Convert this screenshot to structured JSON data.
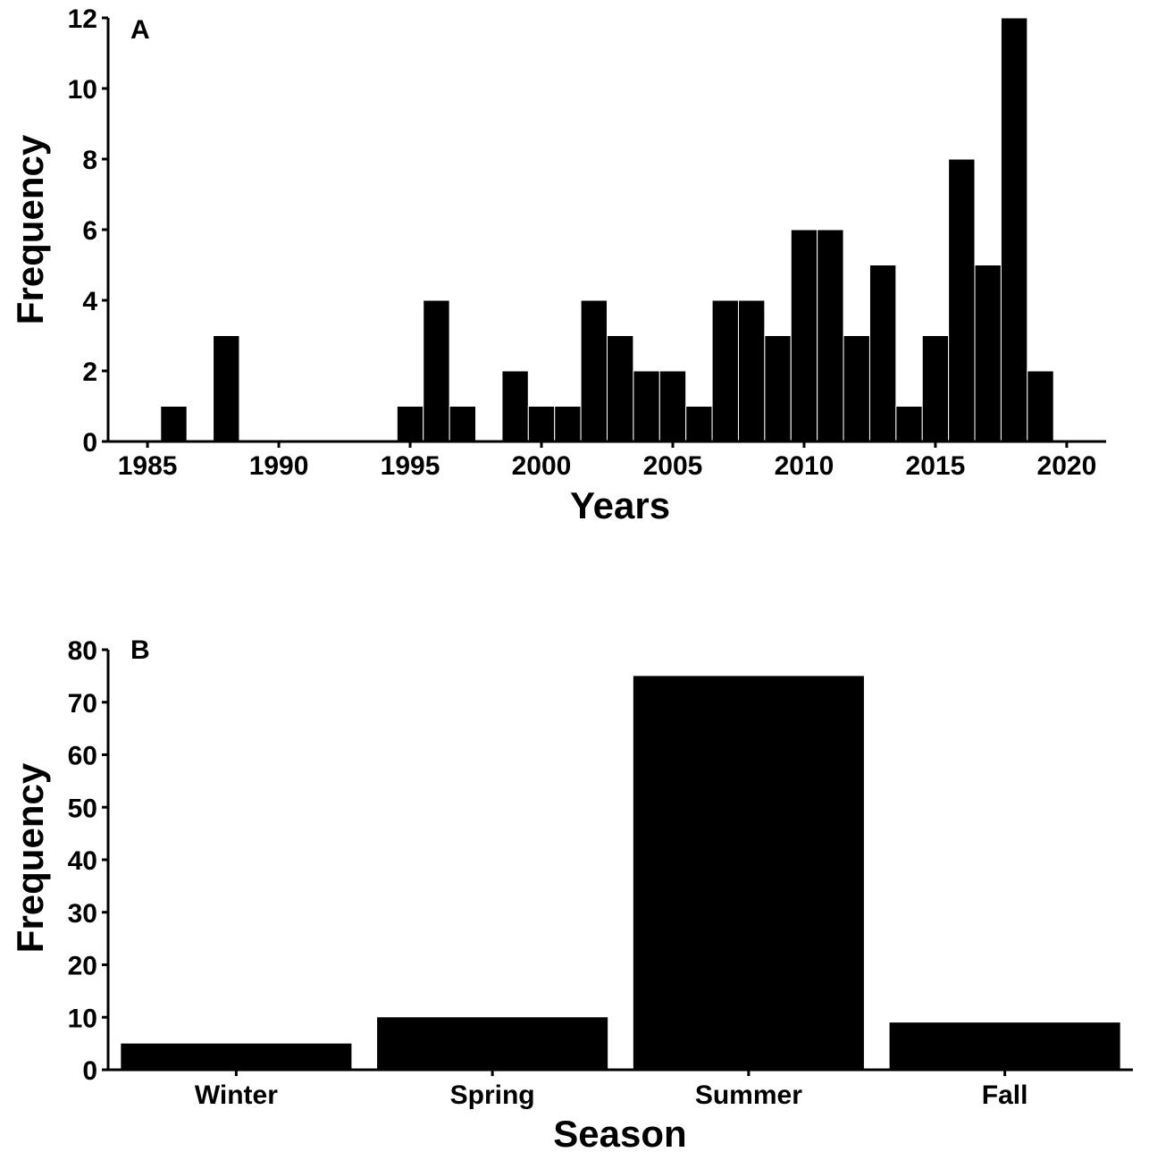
{
  "colors": {
    "bar_fill": "#000000",
    "bar_edge": "#ffffff",
    "axis": "#000000",
    "background": "#ffffff"
  },
  "chart_data": [
    {
      "type": "bar",
      "panel_label": "A",
      "title": "",
      "xlabel": "Years",
      "ylabel": "Frequency",
      "xlim": [
        1983.5,
        2021.5
      ],
      "ylim": [
        0,
        12
      ],
      "x_ticks": [
        1985,
        1990,
        1995,
        2000,
        2005,
        2010,
        2015,
        2020
      ],
      "y_ticks": [
        0,
        2,
        4,
        6,
        8,
        10,
        12
      ],
      "bin_width": 1,
      "grid": false,
      "bins": [
        {
          "x": 1986,
          "value": 1
        },
        {
          "x": 1988,
          "value": 3
        },
        {
          "x": 1995,
          "value": 1
        },
        {
          "x": 1996,
          "value": 4
        },
        {
          "x": 1997,
          "value": 1
        },
        {
          "x": 1999,
          "value": 2
        },
        {
          "x": 2000,
          "value": 1
        },
        {
          "x": 2001,
          "value": 1
        },
        {
          "x": 2002,
          "value": 4
        },
        {
          "x": 2003,
          "value": 3
        },
        {
          "x": 2004,
          "value": 2
        },
        {
          "x": 2005,
          "value": 2
        },
        {
          "x": 2006,
          "value": 1
        },
        {
          "x": 2007,
          "value": 4
        },
        {
          "x": 2008,
          "value": 4
        },
        {
          "x": 2009,
          "value": 3
        },
        {
          "x": 2010,
          "value": 6
        },
        {
          "x": 2011,
          "value": 6
        },
        {
          "x": 2012,
          "value": 3
        },
        {
          "x": 2013,
          "value": 5
        },
        {
          "x": 2014,
          "value": 1
        },
        {
          "x": 2015,
          "value": 3
        },
        {
          "x": 2016,
          "value": 8
        },
        {
          "x": 2017,
          "value": 5
        },
        {
          "x": 2018,
          "value": 12
        },
        {
          "x": 2019,
          "value": 2
        }
      ]
    },
    {
      "type": "bar",
      "panel_label": "B",
      "title": "",
      "xlabel": "Season",
      "ylabel": "Frequency",
      "ylim": [
        0,
        80
      ],
      "y_ticks": [
        0,
        10,
        20,
        30,
        40,
        50,
        60,
        70,
        80
      ],
      "grid": false,
      "categories": [
        "Winter",
        "Spring",
        "Summer",
        "Fall"
      ],
      "values": [
        5,
        10,
        75,
        9
      ]
    }
  ]
}
